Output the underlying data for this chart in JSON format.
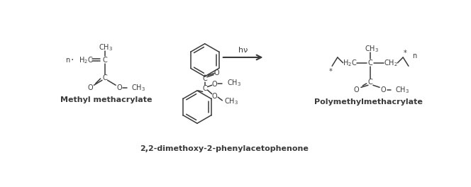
{
  "bg_color": "#ffffff",
  "line_color": "#3a3a3a",
  "text_color": "#3a3a3a",
  "title_fontsize": 8.0,
  "label_fontsize": 7.0,
  "small_fontsize": 6.0,
  "arrow_label": "hν",
  "mol1_label": "Methyl methacrylate",
  "mol2_label": "2,2-dimethoxy-2-phenylacetophenone",
  "mol3_label": "Polymethylmethacrylate"
}
